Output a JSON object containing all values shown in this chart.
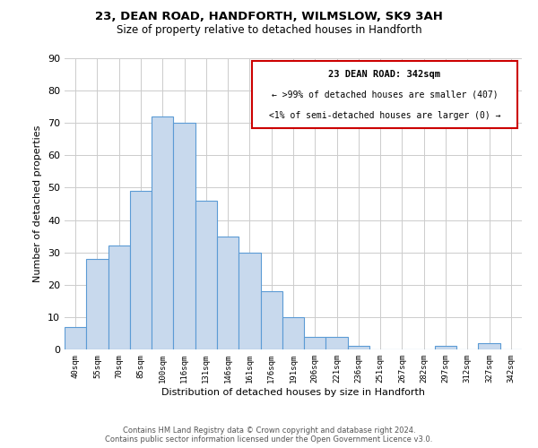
{
  "title": "23, DEAN ROAD, HANDFORTH, WILMSLOW, SK9 3AH",
  "subtitle": "Size of property relative to detached houses in Handforth",
  "xlabel": "Distribution of detached houses by size in Handforth",
  "ylabel": "Number of detached properties",
  "bar_color": "#c8d9ed",
  "bar_edge_color": "#5b9bd5",
  "categories": [
    "40sqm",
    "55sqm",
    "70sqm",
    "85sqm",
    "100sqm",
    "116sqm",
    "131sqm",
    "146sqm",
    "161sqm",
    "176sqm",
    "191sqm",
    "206sqm",
    "221sqm",
    "236sqm",
    "251sqm",
    "267sqm",
    "282sqm",
    "297sqm",
    "312sqm",
    "327sqm",
    "342sqm"
  ],
  "values": [
    7,
    28,
    32,
    49,
    72,
    70,
    46,
    35,
    30,
    18,
    10,
    4,
    4,
    1,
    0,
    0,
    0,
    1,
    0,
    2,
    0
  ],
  "ylim": [
    0,
    90
  ],
  "yticks": [
    0,
    10,
    20,
    30,
    40,
    50,
    60,
    70,
    80,
    90
  ],
  "annotation_title": "23 DEAN ROAD: 342sqm",
  "annotation_line1": "← >99% of detached houses are smaller (407)",
  "annotation_line2": "<1% of semi-detached houses are larger (0) →",
  "annotation_box_color": "#ffffff",
  "annotation_border_color": "#cc0000",
  "footer_line1": "Contains HM Land Registry data © Crown copyright and database right 2024.",
  "footer_line2": "Contains public sector information licensed under the Open Government Licence v3.0.",
  "background_color": "#ffffff",
  "grid_color": "#cccccc"
}
